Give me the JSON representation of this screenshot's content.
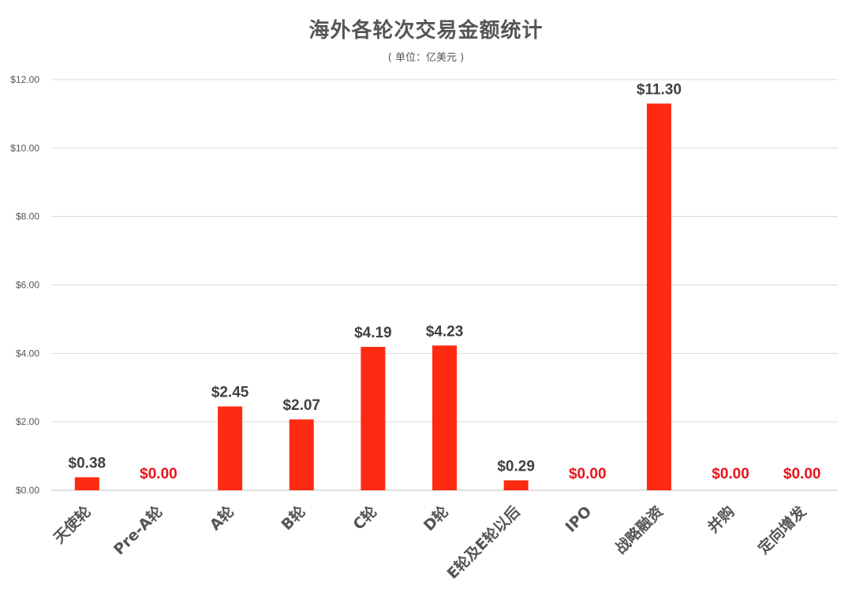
{
  "chart_data": {
    "type": "bar",
    "title": "海外各轮次交易金额统计",
    "subtitle": "( 单位：亿美元 )",
    "categories": [
      "天使轮",
      "Pre-A轮",
      "A轮",
      "B轮",
      "C轮",
      "D轮",
      "E轮及E轮以后",
      "IPO",
      "战略融资",
      "并购",
      "定向增发"
    ],
    "values": [
      0.38,
      0.0,
      2.45,
      2.07,
      4.19,
      4.23,
      0.29,
      0.0,
      11.3,
      0.0,
      0.0
    ],
    "data_labels": [
      "$0.38",
      "$0.00",
      "$2.45",
      "$2.07",
      "$4.19",
      "$4.23",
      "$0.29",
      "$0.00",
      "$11.30",
      "$0.00",
      "$0.00"
    ],
    "ylim": [
      0,
      12
    ],
    "yticks": [
      0,
      2,
      4,
      6,
      8,
      10,
      12
    ],
    "ytick_labels": [
      "$0.00",
      "$2.00",
      "$4.00",
      "$6.00",
      "$8.00",
      "$10.00",
      "$12.00"
    ],
    "grid": true,
    "colors": {
      "bar": "#ff2a12",
      "zero_label": "#e8141b",
      "label": "#404040",
      "grid": "#d9d9d9",
      "axis": "#bfbfbf"
    }
  }
}
